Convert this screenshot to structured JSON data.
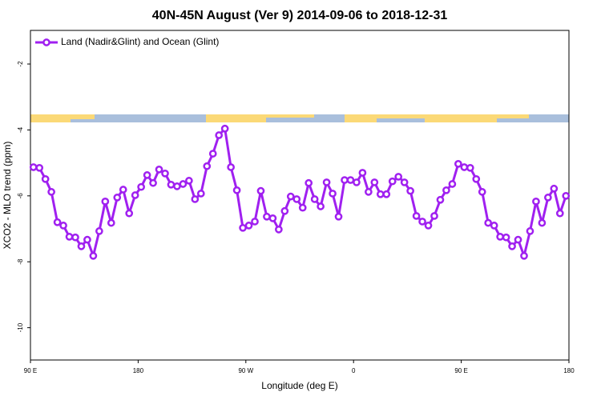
{
  "chart_data": {
    "type": "line",
    "title": "40N-45N August (Ver 9)   2014-09-06 to 2018-12-31",
    "x_label": "Longitude (deg E)",
    "y_label": "XCO2 - MLO trend (ppm)",
    "legend": "top-left",
    "grid": false,
    "marker": "circle",
    "x": [
      92.5,
      97.5,
      102.5,
      107.5,
      112.5,
      117.5,
      122.5,
      127.5,
      132.5,
      137.5,
      142.5,
      147.5,
      152.5,
      157.5,
      162.5,
      167.5,
      172.5,
      177.5,
      182.5,
      187.5,
      192.5,
      197.5,
      202.5,
      207.5,
      212.5,
      217.5,
      222.5,
      227.5,
      232.5,
      237.5,
      242.5,
      247.5,
      252.5,
      257.5,
      262.5,
      267.5,
      272.5,
      277.5,
      282.5,
      287.5,
      292.5,
      297.5,
      302.5,
      307.5,
      312.5,
      317.5,
      322.5,
      327.5,
      332.5,
      337.5,
      342.5,
      347.5,
      352.5,
      357.5,
      362.5,
      367.5,
      372.5,
      377.5,
      382.5,
      387.5,
      392.5,
      397.5,
      402.5,
      407.5,
      412.5,
      417.5,
      422.5,
      427.5,
      432.5,
      437.5,
      442.5,
      447.5,
      452.5,
      457.5,
      462.5,
      467.5,
      472.5,
      477.5,
      482.5,
      487.5,
      492.5,
      497.5,
      502.5,
      507.5,
      512.5,
      517.5,
      522.5,
      527.5,
      532.5,
      537.5
    ],
    "series": [
      {
        "name": "Land (Nadir&Glint) and Ocean (Glint)",
        "color": "#a020f0",
        "values": [
          -5.13,
          -5.15,
          -5.49,
          -5.88,
          -6.8,
          -6.9,
          -7.24,
          -7.26,
          -7.53,
          -7.33,
          -7.82,
          -7.07,
          -6.17,
          -6.82,
          -6.05,
          -5.81,
          -6.53,
          -5.98,
          -5.73,
          -5.37,
          -5.61,
          -5.2,
          -5.32,
          -5.66,
          -5.71,
          -5.64,
          -5.54,
          -6.1,
          -5.93,
          -5.1,
          -4.72,
          -4.16,
          -3.96,
          -5.13,
          -5.83,
          -6.97,
          -6.9,
          -6.78,
          -5.85,
          -6.63,
          -6.68,
          -7.02,
          -6.46,
          -6.02,
          -6.1,
          -6.36,
          -5.61,
          -6.1,
          -6.32,
          -5.59,
          -5.93,
          -6.63,
          -5.52,
          -5.52,
          -5.59,
          -5.3,
          -5.88,
          -5.59,
          -5.95,
          -5.95,
          -5.56,
          -5.42,
          -5.59,
          -5.85,
          -6.61,
          -6.78,
          -6.9,
          -6.61,
          -6.12,
          -5.83,
          -5.64,
          -5.03,
          -5.13,
          -5.15,
          -5.49,
          -5.88,
          -6.82,
          -6.9,
          -7.24,
          -7.26,
          -7.53,
          -7.33,
          -7.82,
          -7.07,
          -6.17,
          -6.82,
          -6.05,
          -5.78,
          -6.53,
          -6.0
        ]
      }
    ],
    "xlim": [
      90,
      540
    ],
    "xticks": [
      {
        "value": 90,
        "label": "90 E"
      },
      180,
      {
        "value": 270,
        "label": "90 W"
      },
      {
        "value": 360,
        "label": "0"
      },
      {
        "value": 450,
        "label": "90 E"
      },
      {
        "value": 540,
        "label": "180"
      }
    ],
    "ylim": [
      -10.98,
      -0.98
    ],
    "yticks": [
      -2,
      -4,
      -6,
      -8,
      -10
    ]
  }
}
